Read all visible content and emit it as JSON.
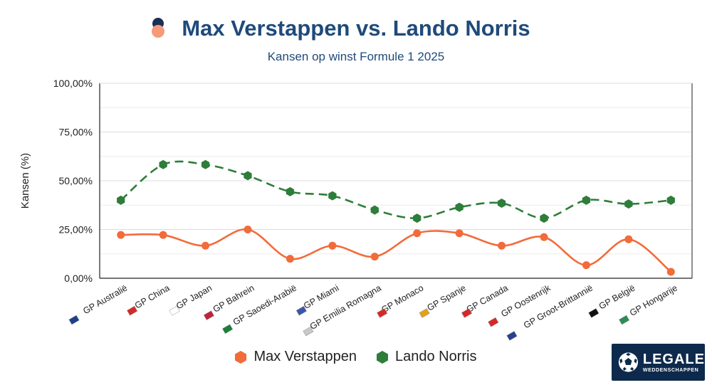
{
  "header": {
    "title": "Max Verstappen vs. Lando Norris",
    "subtitle": "Kansen op winst Formule 1 2025"
  },
  "badge": {
    "line1": "LEGALE",
    "line2": "WEDDENSCHAPPEN",
    "bg_color": "#0d2a4c"
  },
  "chart_data": {
    "type": "line",
    "title": "Max Verstappen vs. Lando Norris",
    "subtitle": "Kansen op winst Formule 1 2025",
    "xlabel": "",
    "ylabel": "Kansen (%)",
    "ylim": [
      0,
      100
    ],
    "yticks": [
      "0,00%",
      "25,00%",
      "50,00%",
      "75,00%",
      "100,00%"
    ],
    "ytick_values": [
      0,
      25,
      50,
      75,
      100
    ],
    "grid": true,
    "legend_position": "bottom",
    "categories": [
      "GP Australië",
      "GP China",
      "GP Japan",
      "GP Bahrein",
      "GP Saoedi-Arabië",
      "GP Miami",
      "GP Emilia Romagna",
      "GP Monaco",
      "GP Spanje",
      "GP Canada",
      "GP Oostenrijk",
      "GP Groot-Brittannië",
      "GP België",
      "GP Hongarije"
    ],
    "series": [
      {
        "name": "Max Verstappen",
        "color": "#f26b3a",
        "style": "solid",
        "marker": "circle",
        "values": [
          22.2,
          22.2,
          16.7,
          25.0,
          10.0,
          16.7,
          11.1,
          23.1,
          23.1,
          16.7,
          21.1,
          6.7,
          20.0,
          3.3
        ]
      },
      {
        "name": "Lando Norris",
        "color": "#2e7d3a",
        "style": "dashed",
        "marker": "hexagon",
        "values": [
          40.0,
          58.3,
          58.3,
          52.6,
          44.4,
          42.3,
          35.0,
          30.8,
          36.4,
          38.5,
          30.8,
          40.0,
          38.1,
          40.0
        ]
      }
    ]
  }
}
